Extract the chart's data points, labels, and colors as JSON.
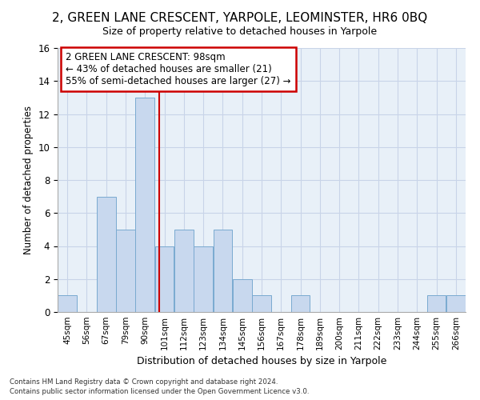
{
  "title1": "2, GREEN LANE CRESCENT, YARPOLE, LEOMINSTER, HR6 0BQ",
  "title2": "Size of property relative to detached houses in Yarpole",
  "xlabel": "Distribution of detached houses by size in Yarpole",
  "ylabel": "Number of detached properties",
  "bins_labels": [
    "45sqm",
    "56sqm",
    "67sqm",
    "79sqm",
    "90sqm",
    "101sqm",
    "112sqm",
    "123sqm",
    "134sqm",
    "145sqm",
    "156sqm",
    "167sqm",
    "178sqm",
    "189sqm",
    "200sqm",
    "211sqm",
    "222sqm",
    "233sqm",
    "244sqm",
    "255sqm",
    "266sqm"
  ],
  "values": [
    1,
    0,
    7,
    5,
    13,
    4,
    5,
    4,
    5,
    2,
    1,
    0,
    1,
    0,
    0,
    0,
    0,
    0,
    0,
    1,
    1
  ],
  "bar_color": "#c8d8ee",
  "bar_edge_color": "#7aaad0",
  "property_sqm": 98,
  "vline_color": "#cc0000",
  "annotation_title": "2 GREEN LANE CRESCENT: 98sqm",
  "annotation_line1": "← 43% of detached houses are smaller (21)",
  "annotation_line2": "55% of semi-detached houses are larger (27) →",
  "annotation_box_color": "#ffffff",
  "annotation_box_edge": "#cc0000",
  "grid_color": "#c8d4e8",
  "bg_color": "#e8f0f8",
  "ylim": [
    0,
    16
  ],
  "yticks": [
    0,
    2,
    4,
    6,
    8,
    10,
    12,
    14,
    16
  ],
  "footer1": "Contains HM Land Registry data © Crown copyright and database right 2024.",
  "footer2": "Contains public sector information licensed under the Open Government Licence v3.0."
}
